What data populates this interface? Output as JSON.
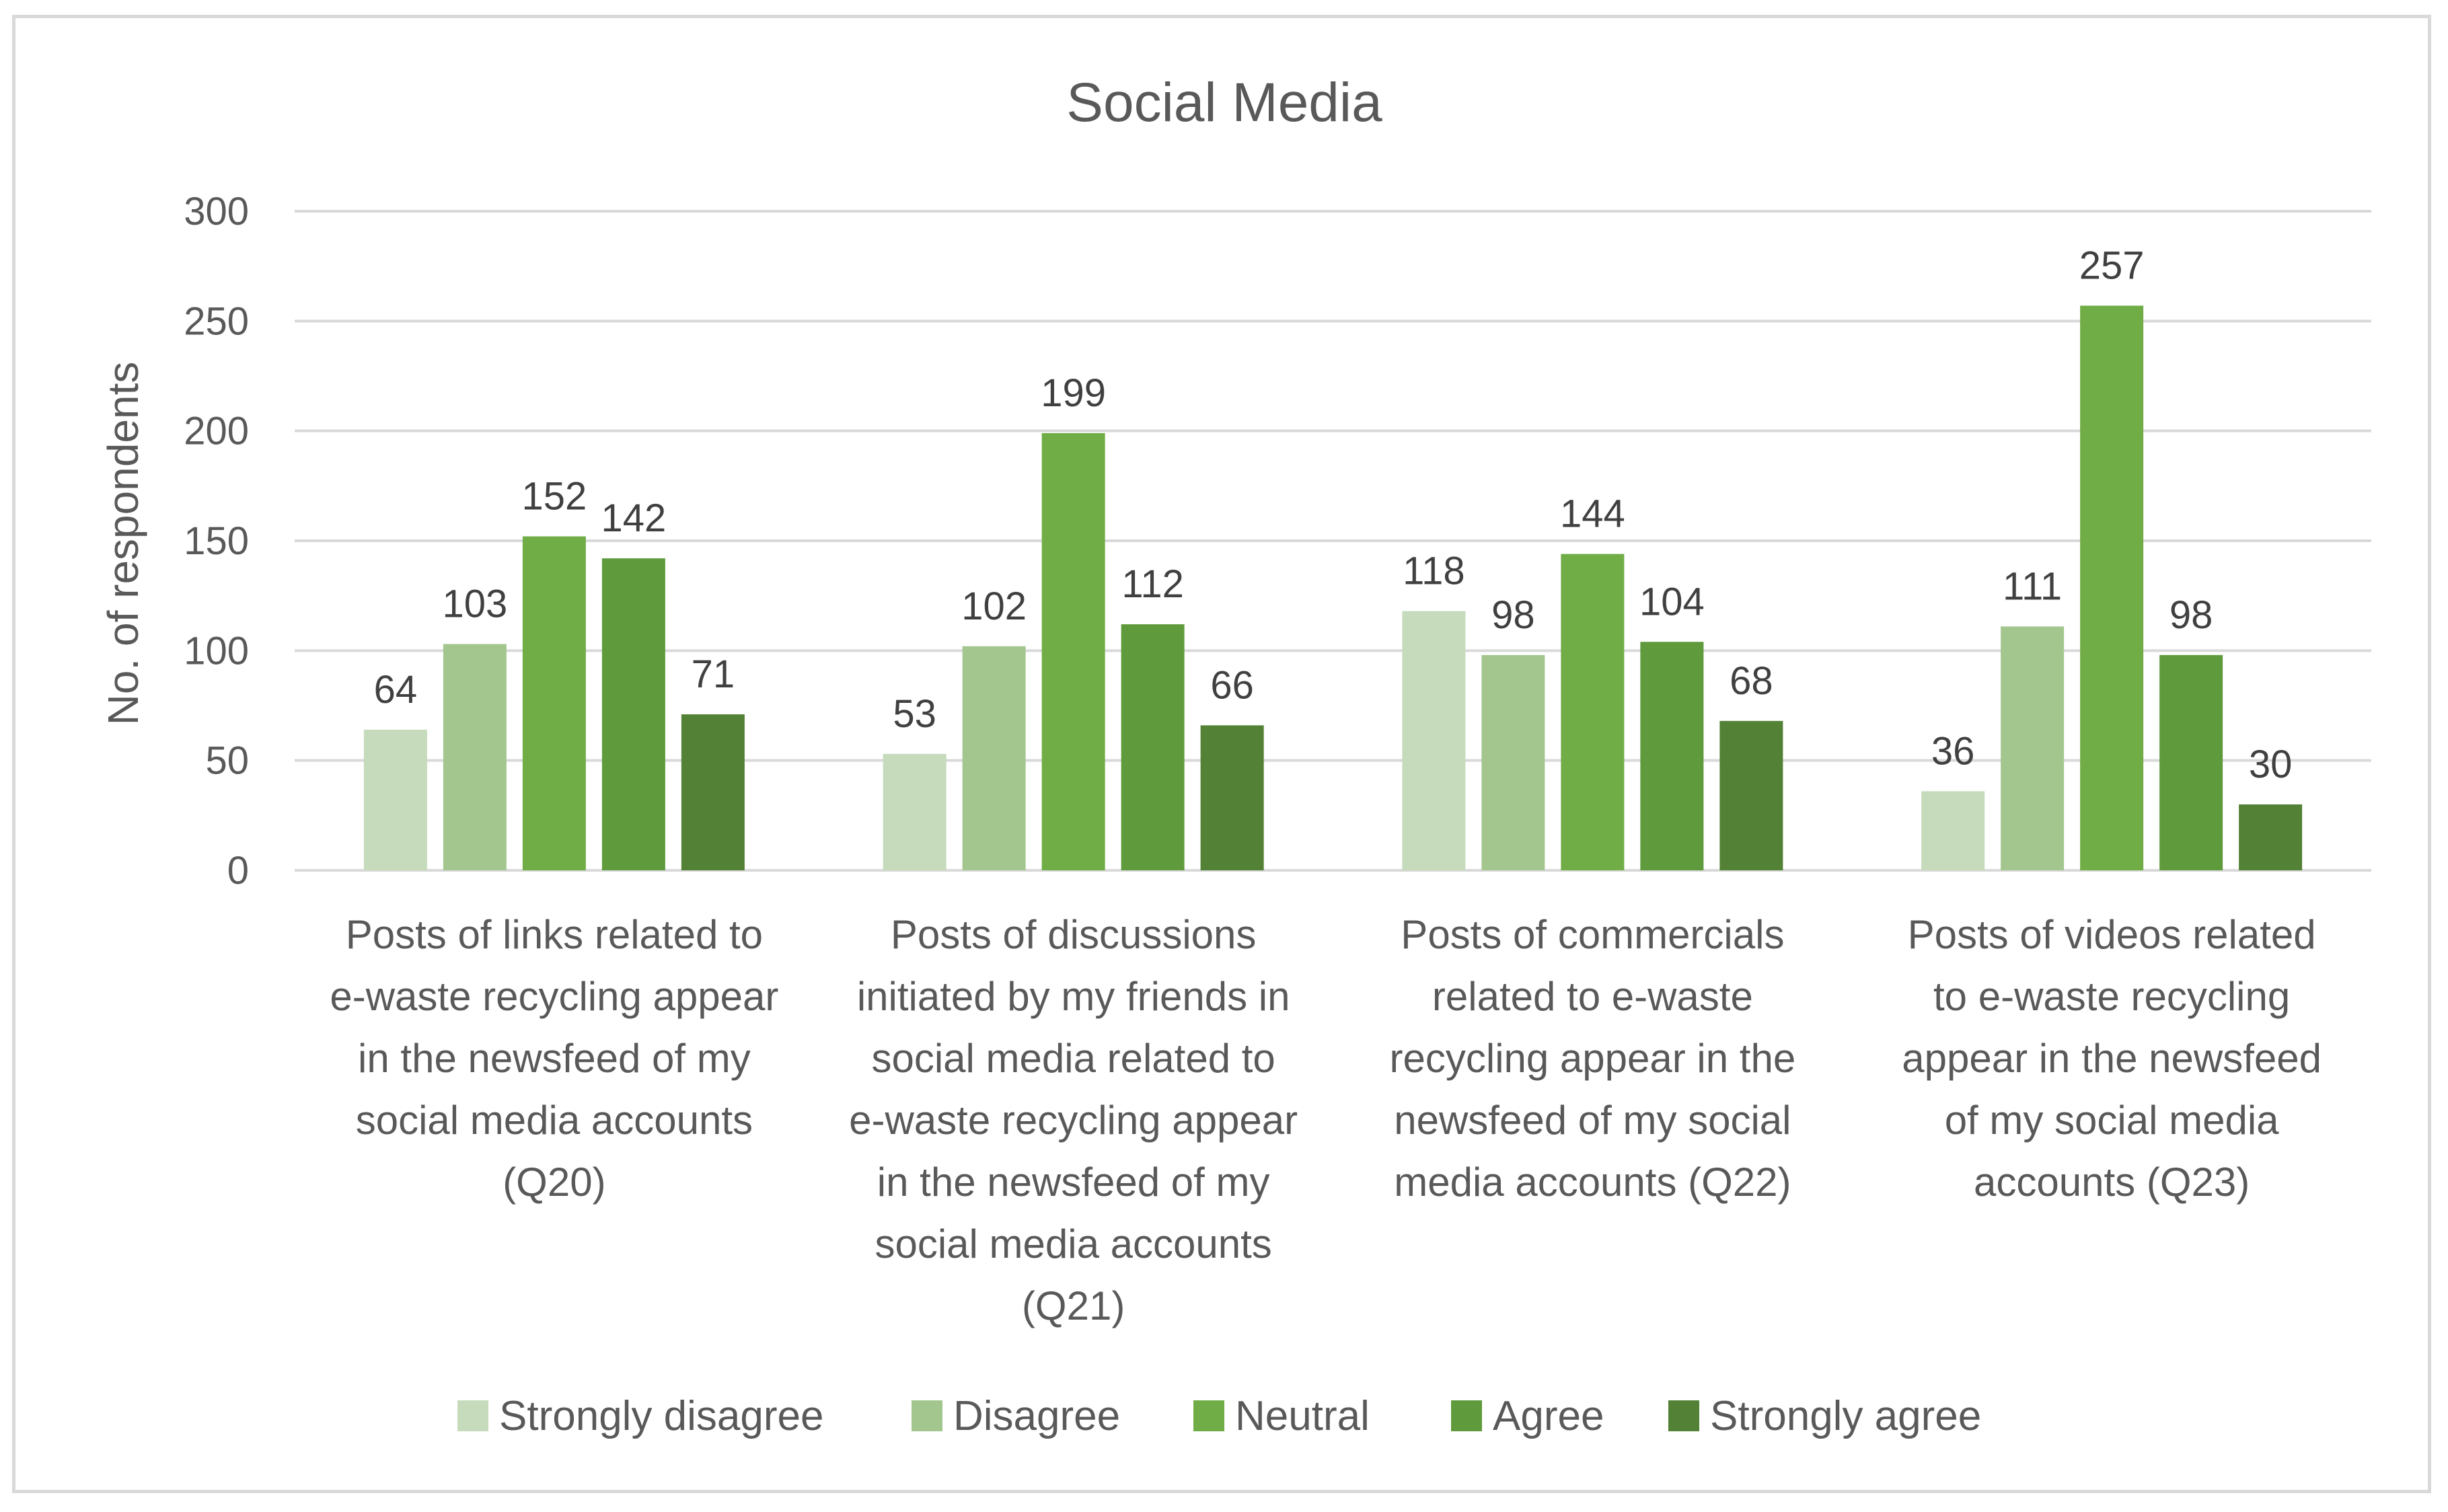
{
  "chart_data": {
    "type": "bar",
    "title": "Social Media",
    "xlabel": "",
    "ylabel": "No. of respondents",
    "ylim": [
      0,
      300
    ],
    "yticks": [
      0,
      50,
      100,
      150,
      200,
      250,
      300
    ],
    "grid": true,
    "legend_position": "bottom",
    "categories": [
      "Posts of links related to e-waste recycling appear in the newsfeed of my social media accounts (Q20)",
      "Posts of discussions initiated by my friends in social media related to e-waste recycling appear in the newsfeed of my social media accounts (Q21)",
      "Posts of commercials related to e-waste recycling appear in the newsfeed of my social media accounts (Q22)",
      "Posts of videos related to e-waste recycling appear in the newsfeed of my social media accounts (Q23)"
    ],
    "category_lines": [
      [
        "Posts of links related to",
        "e-waste recycling appear",
        "in the newsfeed of my",
        "social media accounts",
        "(Q20)"
      ],
      [
        "Posts of discussions",
        "initiated by my friends in",
        "social media related to",
        "e-waste recycling appear",
        "in the newsfeed of my",
        "social media accounts",
        "(Q21)"
      ],
      [
        "Posts of commercials",
        "related to e-waste",
        "recycling appear in the",
        "newsfeed of my social",
        "media accounts (Q22)"
      ],
      [
        "Posts of videos related",
        "to e-waste recycling",
        "appear in the newsfeed",
        "of my social media",
        "accounts (Q23)"
      ]
    ],
    "series": [
      {
        "name": "Strongly disagree",
        "color": "#c5dbbc",
        "values": [
          64,
          53,
          118,
          36
        ]
      },
      {
        "name": "Disagree",
        "color": "#a3c68f",
        "values": [
          103,
          102,
          98,
          111
        ]
      },
      {
        "name": "Neutral",
        "color": "#70ad47",
        "values": [
          152,
          199,
          144,
          257
        ]
      },
      {
        "name": "Agree",
        "color": "#5f9b3d",
        "values": [
          142,
          112,
          104,
          98
        ]
      },
      {
        "name": "Strongly agree",
        "color": "#538135",
        "values": [
          71,
          66,
          68,
          30
        ]
      }
    ]
  }
}
